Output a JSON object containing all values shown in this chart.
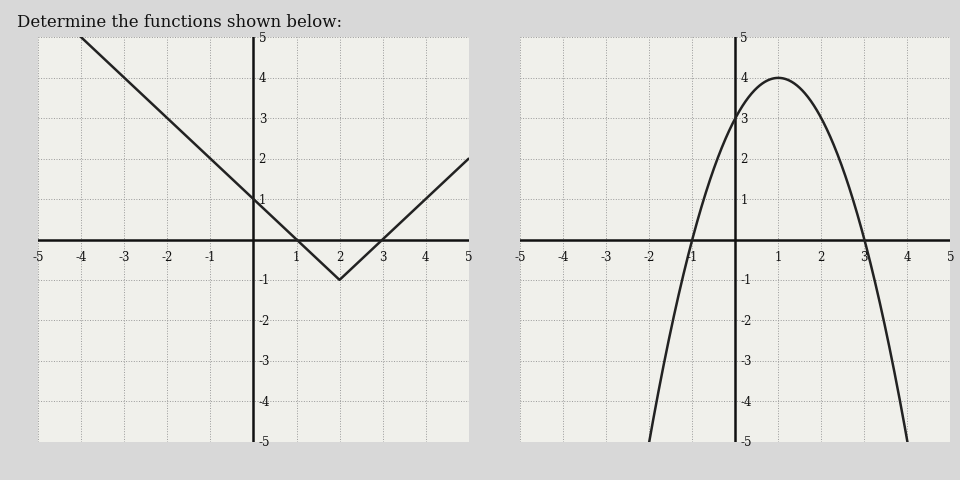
{
  "title": "Determine the functions shown below:",
  "bg_color": "#d8d8d8",
  "plot_bg_color": "#f0f0eb",
  "axis_color": "#111111",
  "grid_color": "#999999",
  "line_color": "#222222",
  "xlim": [
    -5,
    5
  ],
  "ylim": [
    -5,
    5
  ],
  "graph1_vertex_x": 2,
  "graph1_vertex_y": -1,
  "graph2_a": -1,
  "graph2_b": 2,
  "graph2_c": 3
}
